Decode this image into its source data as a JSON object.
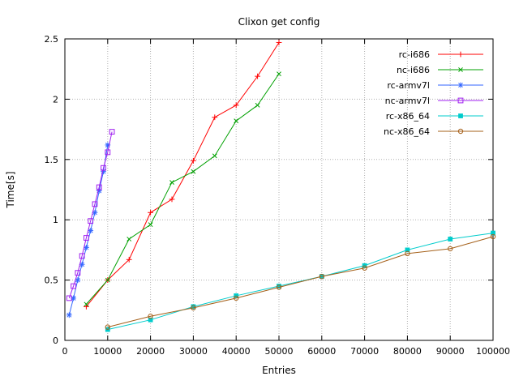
{
  "chart_data": {
    "type": "line",
    "title": "Clixon get config",
    "xlabel": "Entries",
    "ylabel": "Time[s]",
    "xlim": [
      0,
      100000
    ],
    "ylim": [
      0,
      2.5
    ],
    "xtick_values": [
      0,
      10000,
      20000,
      30000,
      40000,
      50000,
      60000,
      70000,
      80000,
      90000,
      100000
    ],
    "xtick_labels": [
      "0",
      "10000",
      "20000",
      "30000",
      "40000",
      "50000",
      "60000",
      "70000",
      "80000",
      "90000",
      "100000"
    ],
    "ytick_values": [
      0,
      0.5,
      1,
      1.5,
      2,
      2.5
    ],
    "ytick_labels": [
      "0",
      "0.5",
      "1",
      "1.5",
      "2",
      "2.5"
    ],
    "grid": true,
    "legend_position": "top-right-inside",
    "background_color": "#ffffff",
    "axis_color": "#000000",
    "grid_color": "#b0b0b0",
    "series": [
      {
        "name": "rc-i686",
        "color": "#ff0000",
        "marker": "plus",
        "x": [
          5000,
          10000,
          15000,
          20000,
          25000,
          30000,
          35000,
          40000,
          45000,
          50000
        ],
        "y": [
          0.28,
          0.5,
          0.67,
          1.06,
          1.17,
          1.49,
          1.85,
          1.95,
          2.19,
          2.47
        ]
      },
      {
        "name": "nc-i686",
        "color": "#00a000",
        "marker": "x",
        "x": [
          5000,
          10000,
          15000,
          20000,
          25000,
          30000,
          35000,
          40000,
          45000,
          50000
        ],
        "y": [
          0.3,
          0.5,
          0.84,
          0.96,
          1.31,
          1.4,
          1.53,
          1.82,
          1.95,
          2.21
        ]
      },
      {
        "name": "rc-armv7l",
        "color": "#3366ff",
        "marker": "asterisk",
        "x": [
          1000,
          2000,
          3000,
          4000,
          5000,
          6000,
          7000,
          8000,
          9000,
          10000
        ],
        "y": [
          0.21,
          0.35,
          0.5,
          0.63,
          0.77,
          0.91,
          1.06,
          1.24,
          1.4,
          1.62
        ]
      },
      {
        "name": "nc-armv7l",
        "color": "#a020f0",
        "marker": "square-open",
        "x": [
          1000,
          2000,
          3000,
          4000,
          5000,
          6000,
          7000,
          8000,
          9000,
          10000,
          11000
        ],
        "y": [
          0.35,
          0.45,
          0.56,
          0.7,
          0.85,
          0.99,
          1.13,
          1.27,
          1.43,
          1.56,
          1.73
        ]
      },
      {
        "name": "rc-x86_64",
        "color": "#00cccc",
        "marker": "square-filled",
        "x": [
          10000,
          20000,
          30000,
          40000,
          50000,
          60000,
          70000,
          80000,
          90000,
          100000
        ],
        "y": [
          0.09,
          0.17,
          0.28,
          0.37,
          0.45,
          0.53,
          0.62,
          0.75,
          0.84,
          0.89
        ]
      },
      {
        "name": "nc-x86_64",
        "color": "#a5601a",
        "marker": "circle-open",
        "x": [
          10000,
          20000,
          30000,
          40000,
          50000,
          60000,
          70000,
          80000,
          90000,
          100000
        ],
        "y": [
          0.11,
          0.2,
          0.27,
          0.35,
          0.44,
          0.53,
          0.6,
          0.72,
          0.76,
          0.86
        ]
      }
    ]
  }
}
